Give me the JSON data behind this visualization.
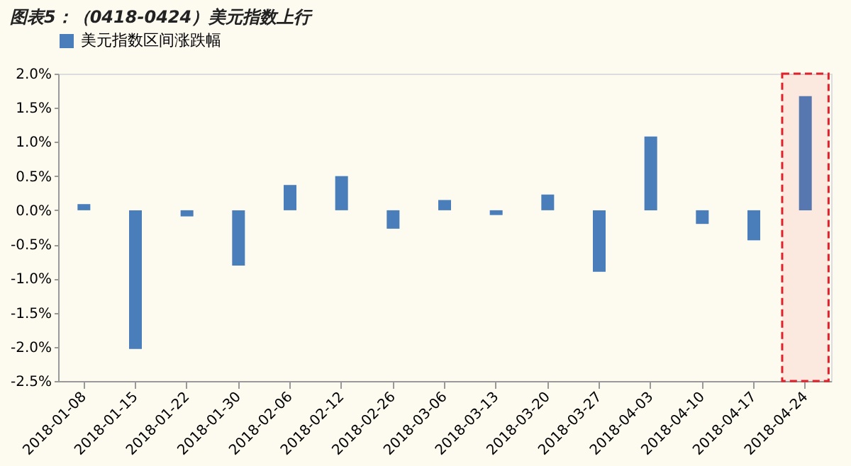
{
  "chart_data": {
    "type": "bar",
    "title": "图表5：（0418-0424）美元指数上行",
    "categories": [
      "2018-01-08",
      "2018-01-15",
      "2018-01-22",
      "2018-01-30",
      "2018-02-06",
      "2018-02-12",
      "2018-02-26",
      "2018-03-06",
      "2018-03-13",
      "2018-03-20",
      "2018-03-27",
      "2018-04-03",
      "2018-04-10",
      "2018-04-17",
      "2018-04-24"
    ],
    "series": [
      {
        "name": "美元指数区间涨跌幅",
        "color": "#4a7ebb",
        "values": [
          0.09,
          -2.03,
          -0.09,
          -0.81,
          0.37,
          0.5,
          -0.27,
          0.15,
          -0.07,
          0.23,
          -0.9,
          1.08,
          -0.2,
          -0.44,
          1.67
        ]
      }
    ],
    "ylim": [
      -2.5,
      2.0
    ],
    "yticks": [
      {
        "value": -2.5,
        "label": "-2.5%"
      },
      {
        "value": -2.0,
        "label": "-2.0%"
      },
      {
        "value": -1.5,
        "label": "-1.5%"
      },
      {
        "value": -1.0,
        "label": "-1.0%"
      },
      {
        "value": -0.5,
        "label": "-0.5%"
      },
      {
        "value": 0.0,
        "label": "0.0%"
      },
      {
        "value": 0.5,
        "label": "0.5%"
      },
      {
        "value": 1.0,
        "label": "1.0%"
      },
      {
        "value": 1.5,
        "label": "1.5%"
      },
      {
        "value": 2.0,
        "label": "2.0%"
      }
    ],
    "bands": [
      {
        "axis": "x",
        "from": "2018-04-24",
        "to": "2018-04-24",
        "label": null,
        "color": "#e0202a"
      }
    ],
    "grid": false,
    "legend": "top"
  }
}
